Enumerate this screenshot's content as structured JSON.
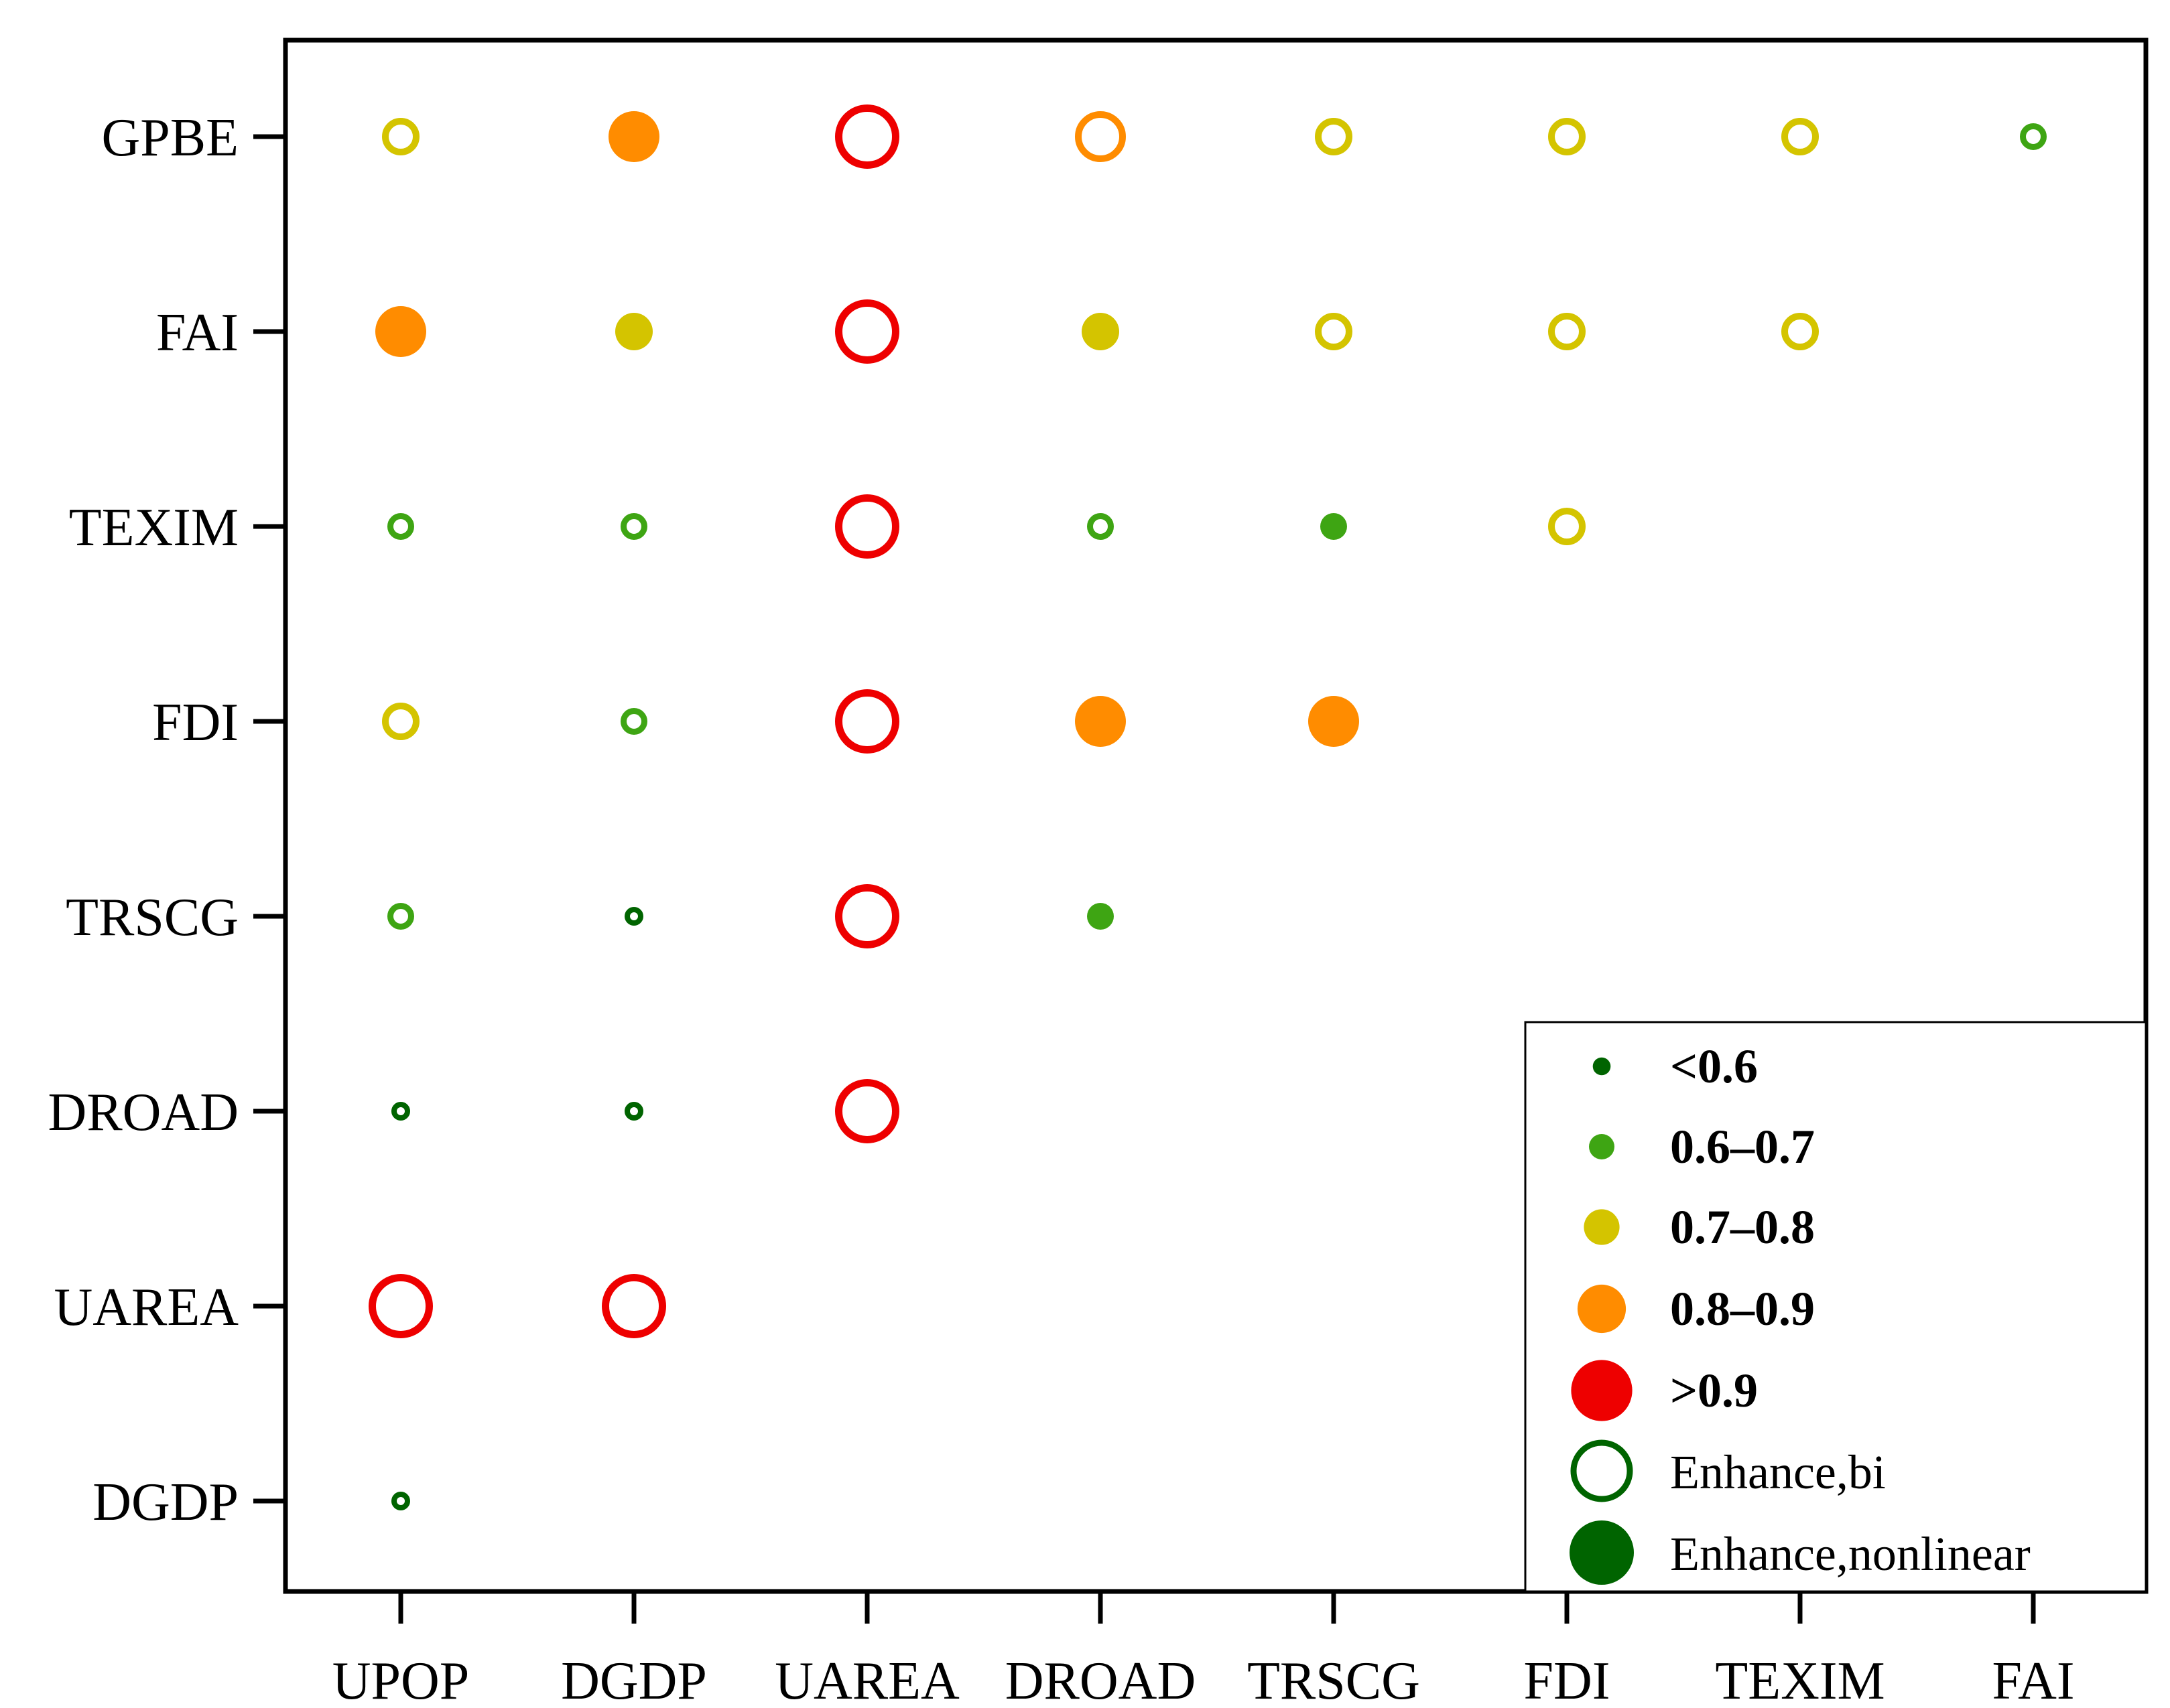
{
  "chart_data": {
    "type": "scatter",
    "x_categories": [
      "UPOP",
      "DGDP",
      "UAREA",
      "DROAD",
      "TRSCG",
      "FDI",
      "TEXIM",
      "FAI"
    ],
    "y_categories": [
      "GPBE",
      "FAI",
      "TEXIM",
      "FDI",
      "TRSCG",
      "DROAD",
      "UAREA",
      "DGDP"
    ],
    "value_classes": [
      {
        "label": "<0.6",
        "color": "#006400"
      },
      {
        "label": "0.6–0.7",
        "color": "#3EA513"
      },
      {
        "label": "0.7–0.8",
        "color": "#D4C400"
      },
      {
        "label": "0.8–0.9",
        "color": "#FF8C00"
      },
      {
        "label": ">0.9",
        "color": "#EE0000"
      }
    ],
    "interaction_types": [
      {
        "label": "Enhance,bi",
        "style": "hollow"
      },
      {
        "label": "Enhance,nonlinear",
        "style": "filled"
      }
    ],
    "points": [
      {
        "x": "UPOP",
        "y": "GPBE",
        "class": 2,
        "type": "hollow"
      },
      {
        "x": "DGDP",
        "y": "GPBE",
        "class": 3,
        "type": "filled"
      },
      {
        "x": "UAREA",
        "y": "GPBE",
        "class": 4,
        "type": "hollow"
      },
      {
        "x": "DROAD",
        "y": "GPBE",
        "class": 3,
        "type": "hollow"
      },
      {
        "x": "TRSCG",
        "y": "GPBE",
        "class": 2,
        "type": "hollow"
      },
      {
        "x": "FDI",
        "y": "GPBE",
        "class": 2,
        "type": "hollow"
      },
      {
        "x": "TEXIM",
        "y": "GPBE",
        "class": 2,
        "type": "hollow"
      },
      {
        "x": "FAI",
        "y": "GPBE",
        "class": 1,
        "type": "hollow"
      },
      {
        "x": "UPOP",
        "y": "FAI",
        "class": 3,
        "type": "filled"
      },
      {
        "x": "DGDP",
        "y": "FAI",
        "class": 2,
        "type": "filled"
      },
      {
        "x": "UAREA",
        "y": "FAI",
        "class": 4,
        "type": "hollow"
      },
      {
        "x": "DROAD",
        "y": "FAI",
        "class": 2,
        "type": "filled"
      },
      {
        "x": "TRSCG",
        "y": "FAI",
        "class": 2,
        "type": "hollow"
      },
      {
        "x": "FDI",
        "y": "FAI",
        "class": 2,
        "type": "hollow"
      },
      {
        "x": "TEXIM",
        "y": "FAI",
        "class": 2,
        "type": "hollow"
      },
      {
        "x": "UPOP",
        "y": "TEXIM",
        "class": 1,
        "type": "hollow"
      },
      {
        "x": "DGDP",
        "y": "TEXIM",
        "class": 1,
        "type": "hollow"
      },
      {
        "x": "UAREA",
        "y": "TEXIM",
        "class": 4,
        "type": "hollow"
      },
      {
        "x": "DROAD",
        "y": "TEXIM",
        "class": 1,
        "type": "hollow"
      },
      {
        "x": "TRSCG",
        "y": "TEXIM",
        "class": 1,
        "type": "filled"
      },
      {
        "x": "FDI",
        "y": "TEXIM",
        "class": 2,
        "type": "hollow"
      },
      {
        "x": "UPOP",
        "y": "FDI",
        "class": 2,
        "type": "hollow"
      },
      {
        "x": "DGDP",
        "y": "FDI",
        "class": 1,
        "type": "hollow"
      },
      {
        "x": "UAREA",
        "y": "FDI",
        "class": 4,
        "type": "hollow"
      },
      {
        "x": "DROAD",
        "y": "FDI",
        "class": 3,
        "type": "filled"
      },
      {
        "x": "TRSCG",
        "y": "FDI",
        "class": 3,
        "type": "filled"
      },
      {
        "x": "UPOP",
        "y": "TRSCG",
        "class": 1,
        "type": "hollow"
      },
      {
        "x": "DGDP",
        "y": "TRSCG",
        "class": 0,
        "type": "hollow"
      },
      {
        "x": "UAREA",
        "y": "TRSCG",
        "class": 4,
        "type": "hollow"
      },
      {
        "x": "DROAD",
        "y": "TRSCG",
        "class": 1,
        "type": "filled"
      },
      {
        "x": "UPOP",
        "y": "DROAD",
        "class": 0,
        "type": "hollow"
      },
      {
        "x": "DGDP",
        "y": "DROAD",
        "class": 0,
        "type": "hollow"
      },
      {
        "x": "UAREA",
        "y": "DROAD",
        "class": 4,
        "type": "hollow"
      },
      {
        "x": "UPOP",
        "y": "UAREA",
        "class": 4,
        "type": "hollow"
      },
      {
        "x": "DGDP",
        "y": "UAREA",
        "class": 4,
        "type": "hollow"
      },
      {
        "x": "UPOP",
        "y": "DGDP",
        "class": 0,
        "type": "hollow"
      }
    ],
    "legend": {
      "position": "bottom-right",
      "entries": [
        "<0.6",
        "0.6–0.7",
        "0.7–0.8",
        "0.8–0.9",
        ">0.9",
        "Enhance,bi",
        "Enhance,nonlinear"
      ]
    },
    "title": "",
    "xlabel": "",
    "ylabel": "",
    "grid": false
  }
}
